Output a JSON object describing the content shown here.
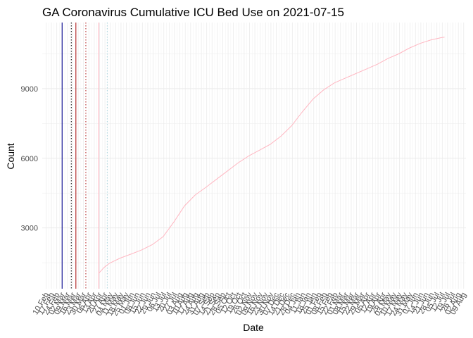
{
  "chart_data": {
    "type": "line",
    "title": "GA Coronavirus Cumulative ICU Bed Use on 2021-07-15",
    "xlabel": "Date",
    "ylabel": "Count",
    "x_range": [
      "2020-02-05",
      "2021-08-12"
    ],
    "ylim": [
      380,
      11850
    ],
    "y_ticks": [
      3000,
      6000,
      9000
    ],
    "grid": true,
    "legend": "none",
    "x_tick_labels": [
      "10 Feb",
      "17 Feb",
      "24 Feb",
      "02 Mar",
      "09 Mar",
      "16 Mar",
      "23 Mar",
      "30 Mar",
      "06 Apr",
      "13 Apr",
      "20 Apr",
      "27 Apr",
      "04 May",
      "11 May",
      "18 May",
      "25 May",
      "01 Jun",
      "08 Jun",
      "15 Jun",
      "22 Jun",
      "29 Jun",
      "06 Jul",
      "13 Jul",
      "20 Jul",
      "27 Jul",
      "03 Aug",
      "10 Aug",
      "17 Aug",
      "24 Aug",
      "31 Aug",
      "07 Sep",
      "14 Sep",
      "21 Sep",
      "28 Sep",
      "05 Oct",
      "12 Oct",
      "19 Oct",
      "26 Oct",
      "02 Nov",
      "09 Nov",
      "16 Nov",
      "23 Nov",
      "30 Nov",
      "07 Dec",
      "14 Dec",
      "21 Dec",
      "28 Dec",
      "04 Jan",
      "11 Jan",
      "18 Jan",
      "25 Jan",
      "01 Feb",
      "08 Feb",
      "15 Feb",
      "22 Feb",
      "01 Mar",
      "08 Mar",
      "15 Mar",
      "22 Mar",
      "29 Mar",
      "05 Apr",
      "12 Apr",
      "19 Apr",
      "26 Apr",
      "03 May",
      "10 May",
      "17 May",
      "24 May",
      "31 May",
      "07 Jun",
      "14 Jun",
      "21 Jun",
      "28 Jun",
      "05 Jul",
      "12 Jul",
      "19 Jul",
      "26 Jul",
      "02 Aug",
      "09 Aug"
    ],
    "series": [
      {
        "color": "#FFB6C1",
        "points": [
          [
            "2020-04-19",
            1050
          ],
          [
            "2020-04-26",
            1300
          ],
          [
            "2020-05-03",
            1480
          ],
          [
            "2020-05-17",
            1700
          ],
          [
            "2020-05-31",
            1870
          ],
          [
            "2020-06-14",
            2050
          ],
          [
            "2020-06-28",
            2280
          ],
          [
            "2020-07-12",
            2620
          ],
          [
            "2020-07-26",
            3250
          ],
          [
            "2020-08-09",
            3950
          ],
          [
            "2020-08-23",
            4420
          ],
          [
            "2020-09-06",
            4750
          ],
          [
            "2020-09-20",
            5100
          ],
          [
            "2020-10-04",
            5450
          ],
          [
            "2020-10-18",
            5800
          ],
          [
            "2020-11-01",
            6100
          ],
          [
            "2020-11-15",
            6350
          ],
          [
            "2020-11-29",
            6600
          ],
          [
            "2020-12-13",
            6950
          ],
          [
            "2020-12-27",
            7400
          ],
          [
            "2021-01-10",
            8000
          ],
          [
            "2021-01-24",
            8550
          ],
          [
            "2021-02-07",
            8950
          ],
          [
            "2021-02-21",
            9250
          ],
          [
            "2021-03-07",
            9450
          ],
          [
            "2021-03-21",
            9650
          ],
          [
            "2021-04-04",
            9850
          ],
          [
            "2021-04-18",
            10050
          ],
          [
            "2021-05-02",
            10300
          ],
          [
            "2021-05-16",
            10500
          ],
          [
            "2021-05-30",
            10750
          ],
          [
            "2021-06-13",
            10950
          ],
          [
            "2021-06-27",
            11100
          ],
          [
            "2021-07-11",
            11200
          ],
          [
            "2021-07-15",
            11220
          ]
        ]
      }
    ],
    "reference_lines": [
      {
        "date": "2020-03-02",
        "color": "#00008B",
        "style": "solid"
      },
      {
        "date": "2020-03-14",
        "color": "#000000",
        "style": "dotted"
      },
      {
        "date": "2020-03-20",
        "color": "#B22222",
        "style": "solid"
      },
      {
        "date": "2020-04-02",
        "color": "#B22222",
        "style": "dotted"
      },
      {
        "date": "2020-04-19",
        "color": "#FFB6C1",
        "style": "solid"
      },
      {
        "date": "2020-04-30",
        "color": "#A9D3DC",
        "style": "dotted"
      }
    ]
  }
}
